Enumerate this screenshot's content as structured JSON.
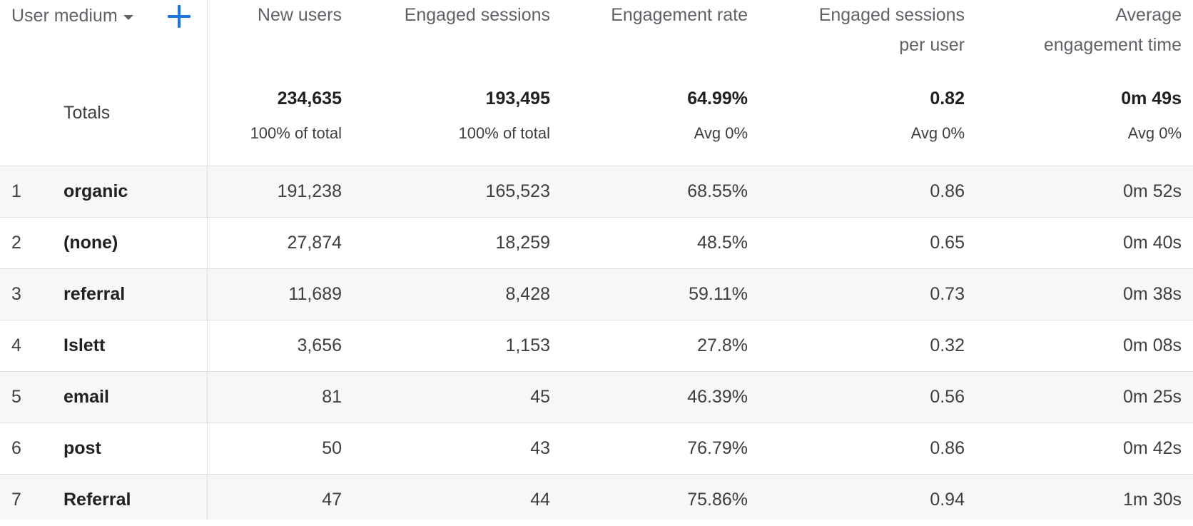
{
  "header": {
    "dimension_label": "User medium",
    "columns": [
      {
        "line1": "New users",
        "line2": ""
      },
      {
        "line1": "Engaged sessions",
        "line2": ""
      },
      {
        "line1": "Engagement rate",
        "line2": ""
      },
      {
        "line1": "Engaged sessions",
        "line2": "per user"
      },
      {
        "line1": "Average",
        "line2": "engagement time"
      }
    ]
  },
  "totals": {
    "label": "Totals",
    "values": [
      "234,635",
      "193,495",
      "64.99%",
      "0.82",
      "0m 49s"
    ],
    "subs": [
      "100% of total",
      "100% of total",
      "Avg 0%",
      "Avg 0%",
      "Avg 0%"
    ]
  },
  "rows": [
    {
      "rank": "1",
      "medium": "organic",
      "values": [
        "191,238",
        "165,523",
        "68.55%",
        "0.86",
        "0m 52s"
      ]
    },
    {
      "rank": "2",
      "medium": "(none)",
      "values": [
        "27,874",
        "18,259",
        "48.5%",
        "0.65",
        "0m 40s"
      ]
    },
    {
      "rank": "3",
      "medium": "referral",
      "values": [
        "11,689",
        "8,428",
        "59.11%",
        "0.73",
        "0m 38s"
      ]
    },
    {
      "rank": "4",
      "medium": "Islett",
      "values": [
        "3,656",
        "1,153",
        "27.8%",
        "0.32",
        "0m 08s"
      ]
    },
    {
      "rank": "5",
      "medium": "email",
      "values": [
        "81",
        "45",
        "46.39%",
        "0.56",
        "0m 25s"
      ]
    },
    {
      "rank": "6",
      "medium": "post",
      "values": [
        "50",
        "43",
        "76.79%",
        "0.86",
        "0m 42s"
      ]
    },
    {
      "rank": "7",
      "medium": "Referral",
      "values": [
        "47",
        "44",
        "75.86%",
        "0.94",
        "1m 30s"
      ]
    }
  ],
  "colors": {
    "accent": "#1a73e8",
    "row_shade": "#f7f7f7",
    "divider": "#e0e0e0"
  }
}
